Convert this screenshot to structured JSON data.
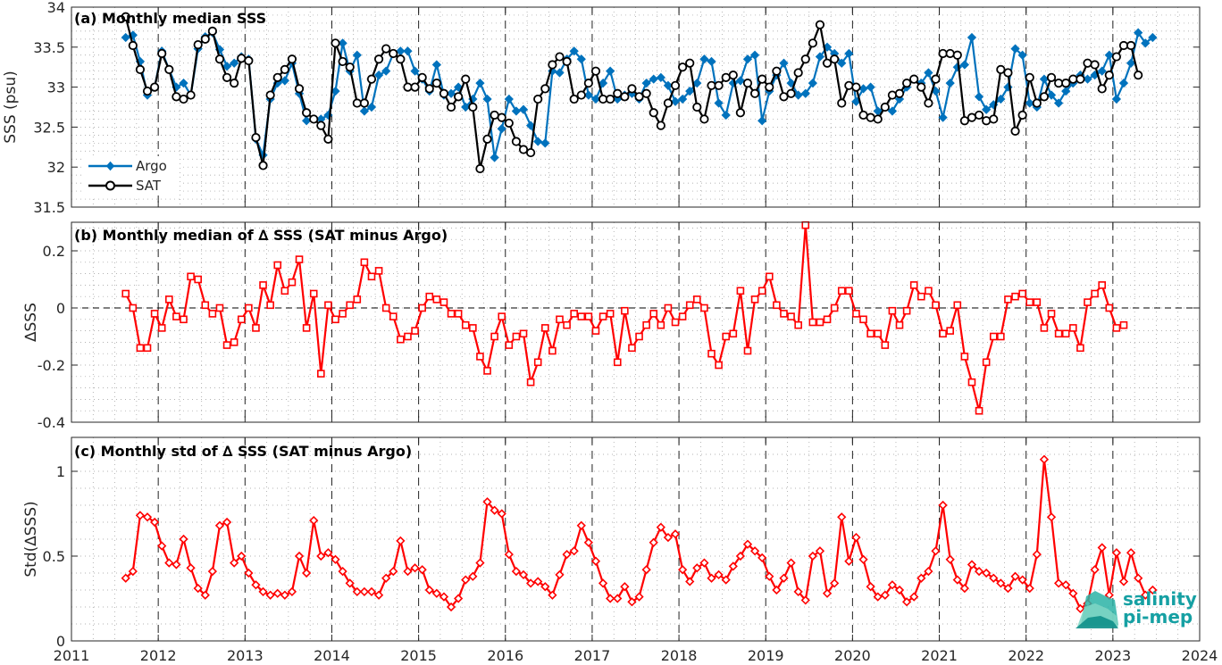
{
  "chart_data": [
    {
      "type": "line",
      "title": "(a) Monthly median SSS",
      "ylabel": "SSS (psu)",
      "ylim": [
        31.5,
        34
      ],
      "yticks": [
        "31.5",
        "32",
        "32.5",
        "33",
        "33.5",
        "34"
      ],
      "xlim": [
        2011,
        2024
      ],
      "xticks": [
        "2011",
        "2012",
        "2013",
        "2014",
        "2015",
        "2016",
        "2017",
        "2018",
        "2019",
        "2020",
        "2021",
        "2022",
        "2023",
        "2024"
      ],
      "grid": "on",
      "legend": "bottom-left",
      "x_start": 2011.625,
      "x_step_months": 1,
      "series": [
        {
          "name": "Argo",
          "color": "#0072BD",
          "marker": "diamond",
          "values": [
            33.62,
            33.65,
            33.32,
            32.9,
            33.0,
            33.45,
            33.22,
            33.0,
            33.05,
            32.9,
            33.48,
            33.63,
            33.68,
            33.47,
            33.26,
            33.3,
            33.38,
            33.35,
            32.35,
            32.15,
            32.85,
            33.05,
            33.08,
            33.3,
            32.92,
            32.58,
            32.6,
            32.6,
            32.65,
            32.95,
            33.55,
            33.2,
            33.4,
            32.7,
            32.75,
            33.15,
            33.2,
            33.42,
            33.45,
            33.45,
            33.2,
            33.1,
            32.95,
            33.28,
            32.9,
            32.92,
            33.0,
            32.75,
            32.85,
            33.05,
            32.85,
            32.12,
            32.48,
            32.85,
            32.7,
            32.72,
            32.52,
            32.32,
            32.3,
            33.2,
            33.18,
            33.35,
            33.45,
            33.35,
            32.9,
            32.85,
            33.05,
            33.2,
            32.85,
            32.9,
            32.92,
            32.85,
            33.05,
            33.1,
            33.12,
            33.02,
            32.82,
            32.85,
            32.95,
            33.05,
            33.35,
            33.32,
            32.8,
            32.65,
            33.05,
            33.08,
            33.35,
            33.4,
            32.58,
            32.95,
            33.15,
            33.3,
            33.05,
            32.9,
            32.92,
            33.05,
            33.38,
            33.5,
            33.42,
            33.3,
            33.42,
            32.82,
            32.98,
            33.0,
            32.7,
            32.75,
            32.7,
            32.85,
            33.0,
            33.1,
            33.05,
            33.18,
            32.95,
            32.62,
            33.05,
            33.25,
            33.28,
            33.62,
            32.88,
            32.72,
            32.78,
            32.85,
            33.0,
            33.48,
            33.4,
            32.8,
            32.75,
            33.1,
            32.9,
            32.8,
            32.95,
            33.05,
            33.15,
            33.1,
            33.15,
            33.2,
            33.4,
            32.85,
            33.05,
            33.3,
            33.68,
            33.55,
            33.62
          ]
        },
        {
          "name": "SAT",
          "color": "#000000",
          "marker": "circle",
          "values": [
            33.88,
            33.52,
            33.22,
            32.95,
            33.0,
            33.42,
            33.22,
            32.88,
            32.85,
            32.9,
            33.53,
            33.6,
            33.7,
            33.35,
            33.12,
            33.05,
            33.36,
            33.33,
            32.37,
            32.02,
            32.9,
            33.12,
            33.22,
            33.35,
            32.98,
            32.68,
            32.6,
            32.52,
            32.35,
            33.55,
            33.32,
            33.25,
            32.8,
            32.8,
            33.1,
            33.35,
            33.48,
            33.42,
            33.35,
            33.0,
            33.0,
            33.12,
            32.98,
            33.05,
            32.92,
            32.75,
            32.88,
            33.1,
            32.75,
            31.98,
            32.35,
            32.65,
            32.62,
            32.55,
            32.32,
            32.22,
            32.18,
            32.85,
            32.98,
            33.28,
            33.38,
            33.32,
            32.85,
            32.9,
            33.05,
            33.2,
            32.85,
            32.85,
            32.92,
            32.88,
            32.98,
            32.88,
            32.92,
            32.68,
            32.52,
            32.8,
            33.02,
            33.25,
            33.3,
            32.75,
            32.6,
            33.02,
            33.02,
            33.12,
            33.15,
            32.68,
            33.05,
            32.92,
            33.1,
            33.0,
            33.2,
            32.88,
            32.92,
            33.18,
            33.35,
            33.55,
            33.78,
            33.3,
            33.35,
            32.8,
            33.02,
            33.0,
            32.65,
            32.62,
            32.6,
            32.75,
            32.9,
            32.92,
            33.05,
            33.1,
            33.0,
            32.8,
            33.1,
            33.42,
            33.42,
            33.4,
            32.58,
            32.62,
            32.65,
            32.58,
            32.6,
            33.22,
            33.18,
            32.45,
            32.65,
            33.12,
            32.8,
            32.88,
            33.12,
            33.05,
            33.05,
            33.1,
            33.1,
            33.3,
            33.28,
            32.98,
            33.15,
            33.38,
            33.52,
            33.52,
            33.15
          ]
        }
      ]
    },
    {
      "type": "line",
      "title": "(b) Monthly median of ∆ SSS (SAT minus Argo)",
      "ylabel": "∆SSS",
      "ylim": [
        -0.4,
        0.3
      ],
      "yticks": [
        "-0.4",
        "-0.2",
        "0",
        "0.2"
      ],
      "xlim": [
        2011,
        2024
      ],
      "grid": "on",
      "zero_line": true,
      "x_start": 2011.625,
      "x_step_months": 1,
      "series": [
        {
          "name": "",
          "color": "#FF0000",
          "marker": "square",
          "values": [
            0.05,
            0.0,
            -0.14,
            -0.14,
            -0.02,
            -0.07,
            0.03,
            -0.03,
            -0.04,
            0.11,
            0.1,
            0.01,
            -0.02,
            0.0,
            -0.13,
            -0.12,
            -0.04,
            0.0,
            -0.07,
            0.08,
            0.01,
            0.15,
            0.06,
            0.09,
            0.17,
            -0.07,
            0.05,
            -0.23,
            0.01,
            -0.04,
            -0.02,
            0.01,
            0.03,
            0.16,
            0.11,
            0.13,
            0.0,
            -0.03,
            -0.11,
            -0.1,
            -0.08,
            0.0,
            0.04,
            0.03,
            0.02,
            -0.02,
            -0.02,
            -0.06,
            -0.07,
            -0.17,
            -0.22,
            -0.1,
            -0.03,
            -0.13,
            -0.1,
            -0.09,
            -0.26,
            -0.19,
            -0.07,
            -0.15,
            -0.04,
            -0.06,
            -0.02,
            -0.03,
            -0.03,
            -0.08,
            -0.03,
            -0.02,
            -0.19,
            -0.01,
            -0.14,
            -0.1,
            -0.06,
            -0.02,
            -0.06,
            0.0,
            -0.05,
            -0.03,
            0.01,
            0.03,
            0.0,
            -0.16,
            -0.2,
            -0.1,
            -0.09,
            0.06,
            -0.15,
            0.03,
            0.06,
            0.11,
            0.01,
            -0.02,
            -0.03,
            -0.06,
            0.29,
            -0.05,
            -0.05,
            -0.04,
            0.0,
            0.06,
            0.06,
            -0.02,
            -0.04,
            -0.09,
            -0.09,
            -0.13,
            -0.01,
            -0.06,
            -0.01,
            0.08,
            0.04,
            0.06,
            0.01,
            -0.09,
            -0.08,
            0.01,
            -0.17,
            -0.26,
            -0.36,
            -0.19,
            -0.1,
            -0.1,
            0.03,
            0.04,
            0.05,
            0.02,
            0.02,
            -0.07,
            -0.02,
            -0.09,
            -0.09,
            -0.07,
            -0.14,
            0.02,
            0.05,
            0.08,
            0.0,
            -0.07,
            -0.06
          ]
        }
      ]
    },
    {
      "type": "line",
      "title": "(c) Monthly std of ∆ SSS (SAT minus Argo)",
      "ylabel": "Std(∆SSS)",
      "ylim": [
        0,
        1.2
      ],
      "yticks": [
        "0",
        "0.5",
        "1"
      ],
      "xlim": [
        2011,
        2024
      ],
      "xticks": [
        "2011",
        "2012",
        "2013",
        "2014",
        "2015",
        "2016",
        "2017",
        "2018",
        "2019",
        "2020",
        "2021",
        "2022",
        "2023",
        "2024"
      ],
      "grid": "on",
      "x_start": 2011.625,
      "x_step_months": 1,
      "series": [
        {
          "name": "",
          "color": "#FF0000",
          "marker": "diamond",
          "values": [
            0.37,
            0.41,
            0.74,
            0.73,
            0.7,
            0.56,
            0.46,
            0.45,
            0.6,
            0.43,
            0.31,
            0.27,
            0.41,
            0.68,
            0.7,
            0.46,
            0.5,
            0.4,
            0.33,
            0.29,
            0.27,
            0.28,
            0.27,
            0.29,
            0.5,
            0.4,
            0.71,
            0.5,
            0.52,
            0.48,
            0.41,
            0.34,
            0.29,
            0.29,
            0.29,
            0.27,
            0.37,
            0.41,
            0.59,
            0.41,
            0.43,
            0.42,
            0.3,
            0.28,
            0.26,
            0.2,
            0.25,
            0.36,
            0.38,
            0.46,
            0.82,
            0.77,
            0.75,
            0.51,
            0.41,
            0.39,
            0.34,
            0.35,
            0.32,
            0.27,
            0.39,
            0.51,
            0.53,
            0.68,
            0.58,
            0.47,
            0.34,
            0.25,
            0.25,
            0.32,
            0.23,
            0.26,
            0.42,
            0.58,
            0.67,
            0.61,
            0.63,
            0.42,
            0.35,
            0.43,
            0.46,
            0.37,
            0.39,
            0.36,
            0.44,
            0.5,
            0.57,
            0.53,
            0.49,
            0.38,
            0.3,
            0.37,
            0.46,
            0.29,
            0.24,
            0.5,
            0.53,
            0.28,
            0.34,
            0.73,
            0.47,
            0.61,
            0.48,
            0.32,
            0.26,
            0.27,
            0.33,
            0.3,
            0.23,
            0.26,
            0.37,
            0.41,
            0.53,
            0.8,
            0.48,
            0.36,
            0.31,
            0.45,
            0.41,
            0.4,
            0.37,
            0.34,
            0.31,
            0.38,
            0.36,
            0.31,
            0.51,
            1.07,
            0.73,
            0.34,
            0.33,
            0.28,
            0.19,
            0.22,
            0.42,
            0.55,
            0.27,
            0.52,
            0.35,
            0.52,
            0.37,
            0.27,
            0.3
          ]
        }
      ]
    }
  ],
  "logo": {
    "line1": "salinity",
    "line2": "pi-mep"
  }
}
